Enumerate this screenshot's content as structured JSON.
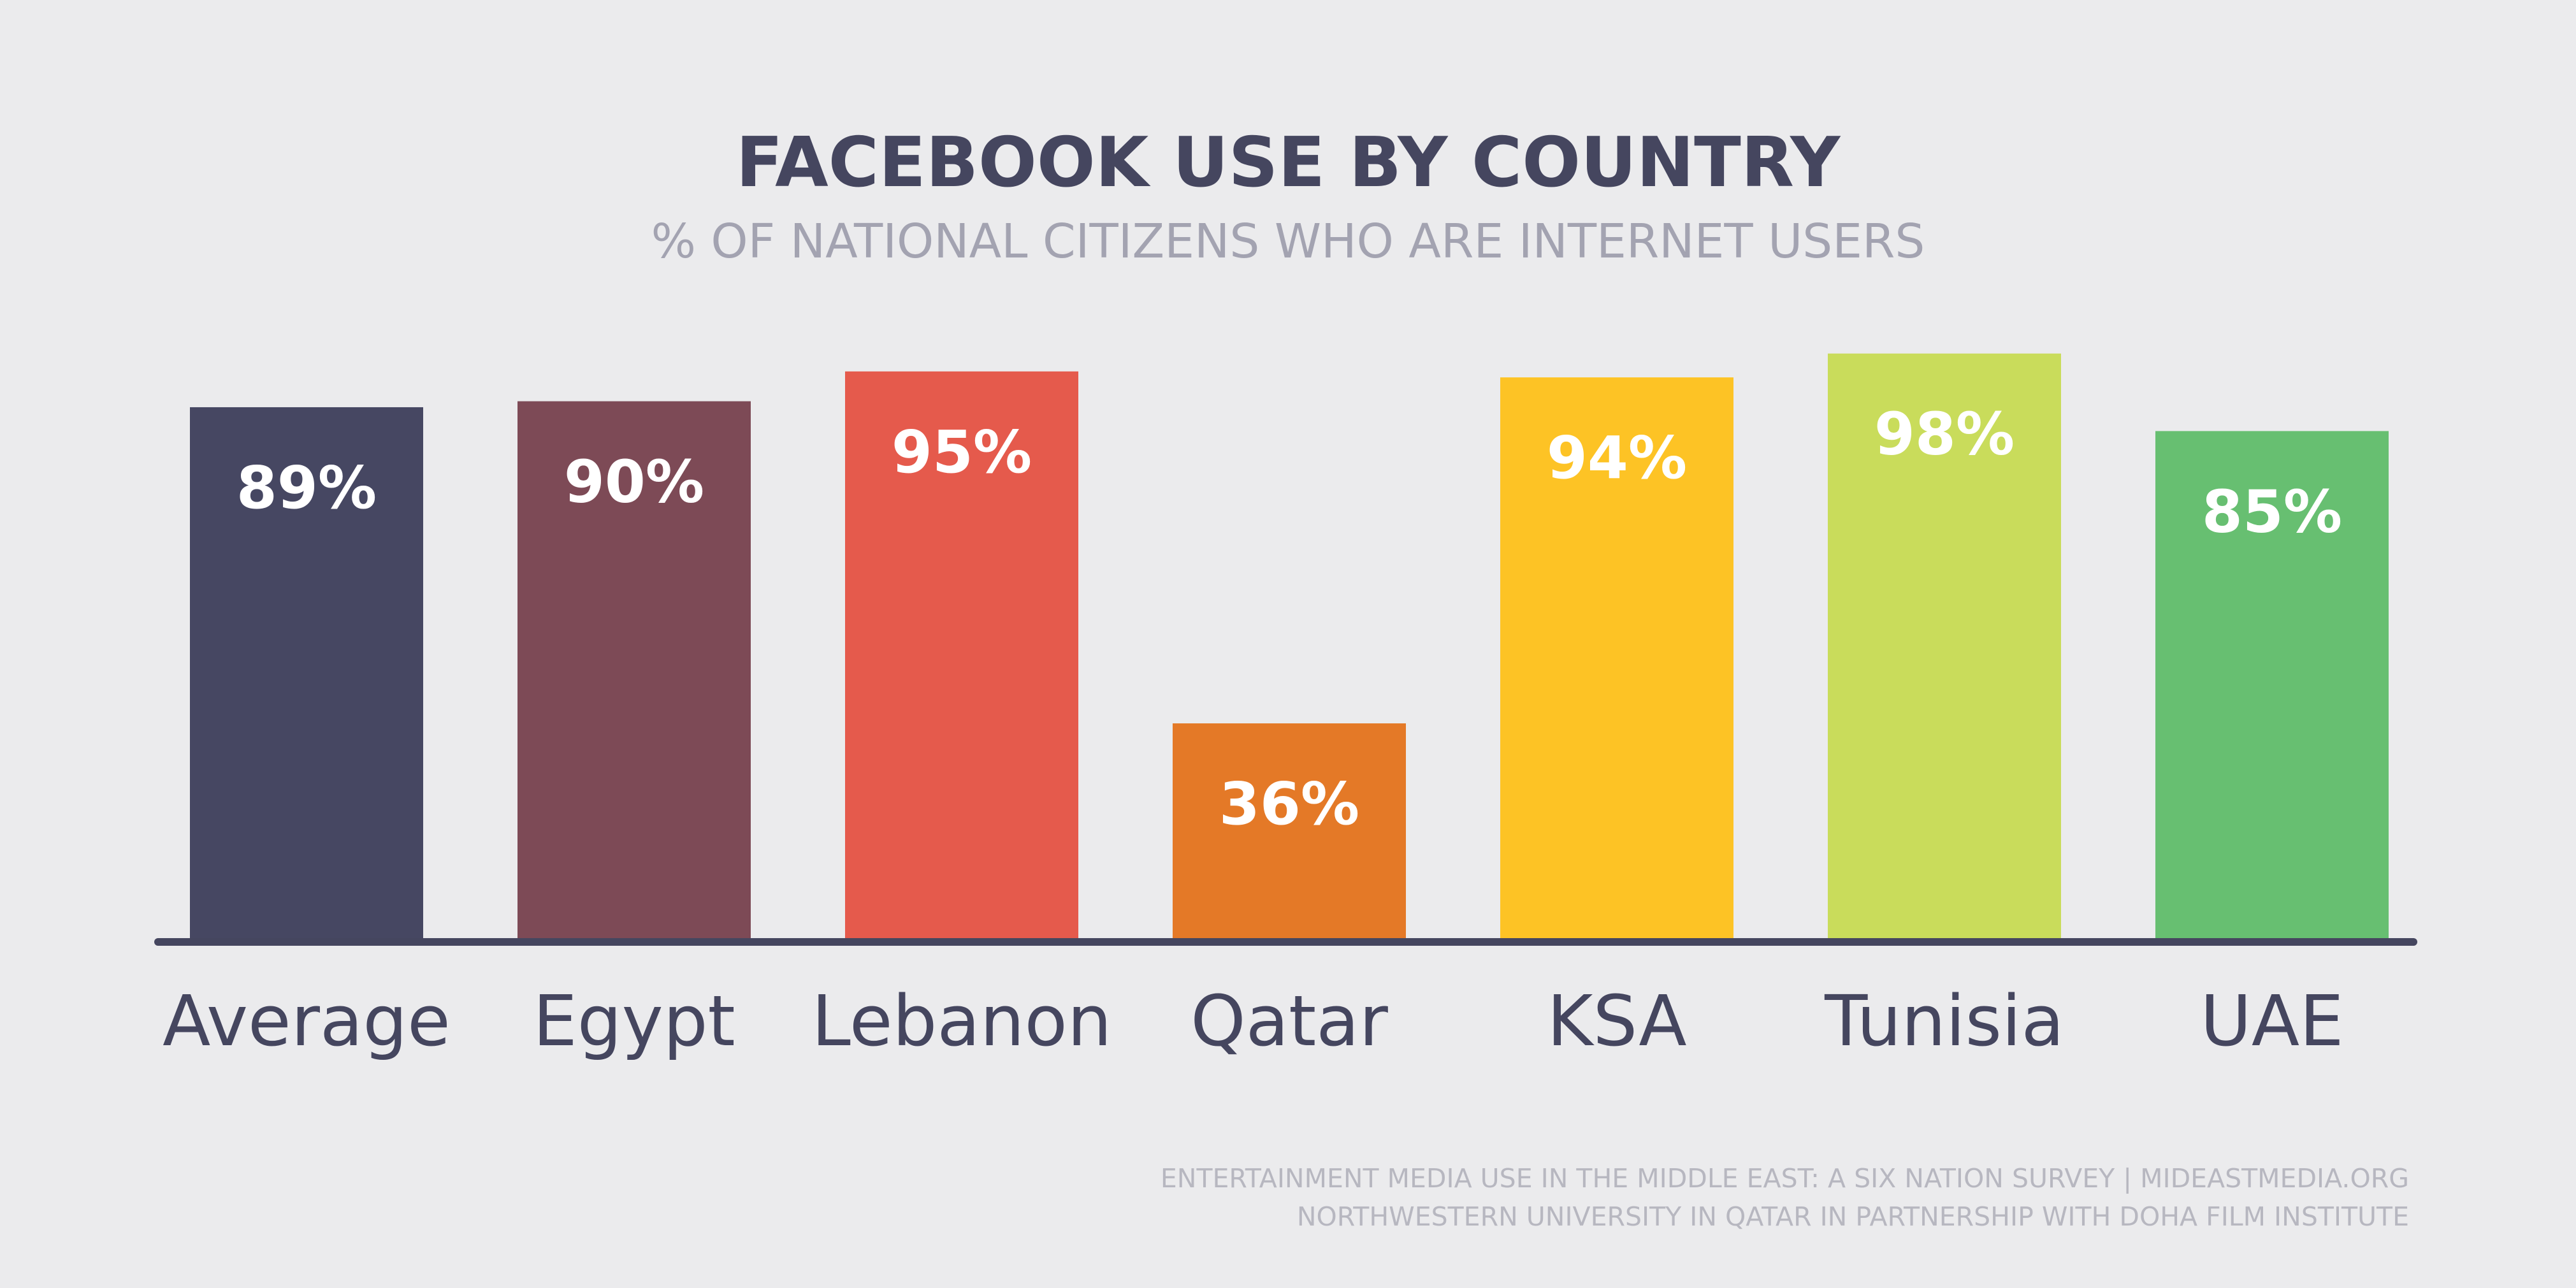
{
  "chart_data": {
    "type": "bar",
    "title": "FACEBOOK USE BY COUNTRY",
    "subtitle": "% OF NATIONAL CITIZENS WHO ARE INTERNET USERS",
    "categories": [
      "Average",
      "Egypt",
      "Lebanon",
      "Qatar",
      "KSA",
      "Tunisia",
      "UAE"
    ],
    "values": [
      89,
      90,
      95,
      36,
      94,
      98,
      85
    ],
    "value_labels": [
      "89%",
      "90%",
      "95%",
      "36%",
      "94%",
      "98%",
      "85%"
    ],
    "colors": [
      "#464762",
      "#7d4a56",
      "#e55a4c",
      "#e47927",
      "#fdc325",
      "#c9dc5b",
      "#67bf71"
    ],
    "ylim": [
      0,
      100
    ],
    "grid": false,
    "legend": "none"
  },
  "source": {
    "line1": "ENTERTAINMENT MEDIA USE IN THE MIDDLE EAST: A SIX NATION SURVEY | MIDEASTMEDIA.ORG",
    "line2": "NORTHWESTERN UNIVERSITY IN QATAR IN PARTNERSHIP WITH DOHA FILM INSTITUTE"
  },
  "axis_color": "#45465f",
  "background": "#ebebed"
}
